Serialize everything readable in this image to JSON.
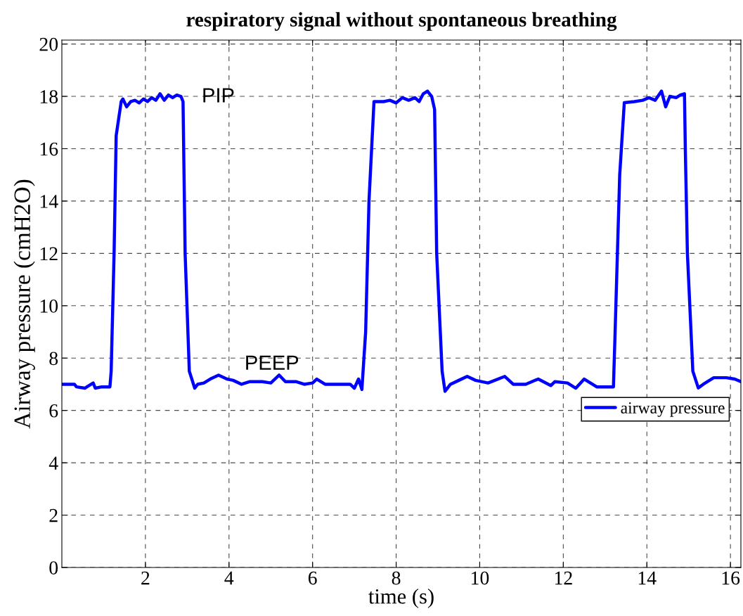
{
  "chart_data": {
    "type": "line",
    "title": "respiratory signal without spontaneous breathing",
    "xlabel": "time (s)",
    "ylabel": "Airway pressure (cmH2O)",
    "x": [
      0,
      0.3,
      0.35,
      0.55,
      0.6,
      0.75,
      0.8,
      0.95,
      1.15,
      1.18,
      1.25,
      1.3,
      1.42,
      1.46,
      1.55,
      1.65,
      1.75,
      1.85,
      1.95,
      2.05,
      2.15,
      2.25,
      2.35,
      2.45,
      2.55,
      2.65,
      2.75,
      2.85,
      2.9,
      2.95,
      3.05,
      3.18,
      3.25,
      3.4,
      3.55,
      3.75,
      3.95,
      4.1,
      4.3,
      4.5,
      4.8,
      5.0,
      5.2,
      5.35,
      5.6,
      5.8,
      6.0,
      6.1,
      6.3,
      6.5,
      6.9,
      7.0,
      7.1,
      7.18,
      7.27,
      7.35,
      7.47,
      7.7,
      7.85,
      8.0,
      8.15,
      8.3,
      8.45,
      8.55,
      8.65,
      8.75,
      8.85,
      8.92,
      8.97,
      9.1,
      9.17,
      9.3,
      9.5,
      9.7,
      9.9,
      10.2,
      10.6,
      10.8,
      11.1,
      11.4,
      11.7,
      11.8,
      12.1,
      12.3,
      12.5,
      12.8,
      13.0,
      13.2,
      13.24,
      13.35,
      13.46,
      13.7,
      13.9,
      14.05,
      14.2,
      14.35,
      14.45,
      14.55,
      14.7,
      14.8,
      14.9,
      14.92,
      14.97,
      15.1,
      15.23,
      15.35,
      15.6,
      15.9,
      16.1,
      16.25
    ],
    "series": [
      {
        "name": "airway pressure",
        "color": "#0000ff",
        "values": [
          7,
          7,
          6.9,
          6.85,
          6.9,
          7.05,
          6.85,
          6.9,
          6.9,
          7.5,
          12,
          16.5,
          17.8,
          17.9,
          17.6,
          17.8,
          17.85,
          17.75,
          17.9,
          17.8,
          17.95,
          17.85,
          18.1,
          17.85,
          18.05,
          17.95,
          18.05,
          18.0,
          17.8,
          12,
          7.5,
          6.85,
          7.0,
          7.05,
          7.2,
          7.35,
          7.2,
          7.15,
          7.0,
          7.1,
          7.1,
          7.05,
          7.35,
          7.1,
          7.1,
          7.0,
          7.05,
          7.2,
          7.0,
          7.0,
          7.0,
          6.85,
          7.2,
          6.8,
          9,
          14,
          17.8,
          17.8,
          17.85,
          17.75,
          17.95,
          17.85,
          17.95,
          17.8,
          18.1,
          18.2,
          18.0,
          17.5,
          12,
          7.5,
          6.73,
          7.0,
          7.15,
          7.3,
          7.15,
          7.05,
          7.3,
          7.0,
          7.0,
          7.2,
          6.95,
          7.1,
          7.05,
          6.85,
          7.2,
          6.9,
          6.9,
          6.9,
          9,
          15,
          17.76,
          17.8,
          17.85,
          17.95,
          17.85,
          18.2,
          17.6,
          18.0,
          17.95,
          18.05,
          18.1,
          16,
          12,
          7.5,
          6.86,
          7.0,
          7.25,
          7.25,
          7.2,
          7.1
        ]
      }
    ],
    "annotations": [
      "PIP",
      "PEEP"
    ],
    "xlim": [
      0,
      16.25
    ],
    "xticks": [
      2,
      4,
      6,
      8,
      10,
      12,
      14,
      16
    ],
    "ylim": [
      0,
      20.15
    ],
    "yticks": [
      0,
      2,
      4,
      6,
      8,
      10,
      12,
      14,
      16,
      18,
      20
    ],
    "grid": true,
    "legend": "right",
    "line_style": "solid",
    "marker": "none"
  }
}
